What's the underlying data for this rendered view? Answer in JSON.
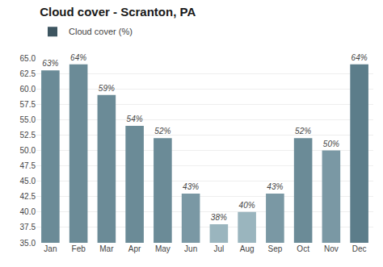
{
  "chart_data": {
    "type": "bar",
    "title": "Cloud cover - Scranton, PA",
    "categories": [
      "Jan",
      "Feb",
      "Mar",
      "Apr",
      "May",
      "Jun",
      "Jul",
      "Aug",
      "Sep",
      "Oct",
      "Nov",
      "Dec"
    ],
    "series": [
      {
        "name": "Cloud cover (%)",
        "color": "#3d5560",
        "colors": [
          "#6b8b97",
          "#6b8b97",
          "#6b8b97",
          "#6b8b97",
          "#6b8b97",
          "#7a98a4",
          "#9ab5be",
          "#9ab5be",
          "#7a98a4",
          "#6b8b97",
          "#7a98a4",
          "#5c7d8a"
        ],
        "values": [
          63,
          64,
          59,
          54,
          52,
          43,
          38,
          40,
          43,
          52,
          50,
          64
        ],
        "value_labels": [
          "63%",
          "64%",
          "59%",
          "54%",
          "52%",
          "43%",
          "38%",
          "40%",
          "43%",
          "52%",
          "50%",
          "64%"
        ]
      }
    ],
    "ylim": [
      35,
      65
    ],
    "yticks": [
      {
        "value": 35,
        "label": "35.0"
      },
      37.5,
      {
        "value": 40,
        "label": "40.0"
      },
      42.5,
      {
        "value": 45,
        "label": "45.0"
      },
      47.5,
      {
        "value": 50,
        "label": "50.0"
      },
      52.5,
      {
        "value": 55,
        "label": "55.0"
      },
      57.5,
      {
        "value": 60,
        "label": "60.0"
      },
      62.5,
      {
        "value": 65,
        "label": "65.0"
      }
    ],
    "grid": true,
    "legend": "upper left",
    "data_labels": true
  }
}
